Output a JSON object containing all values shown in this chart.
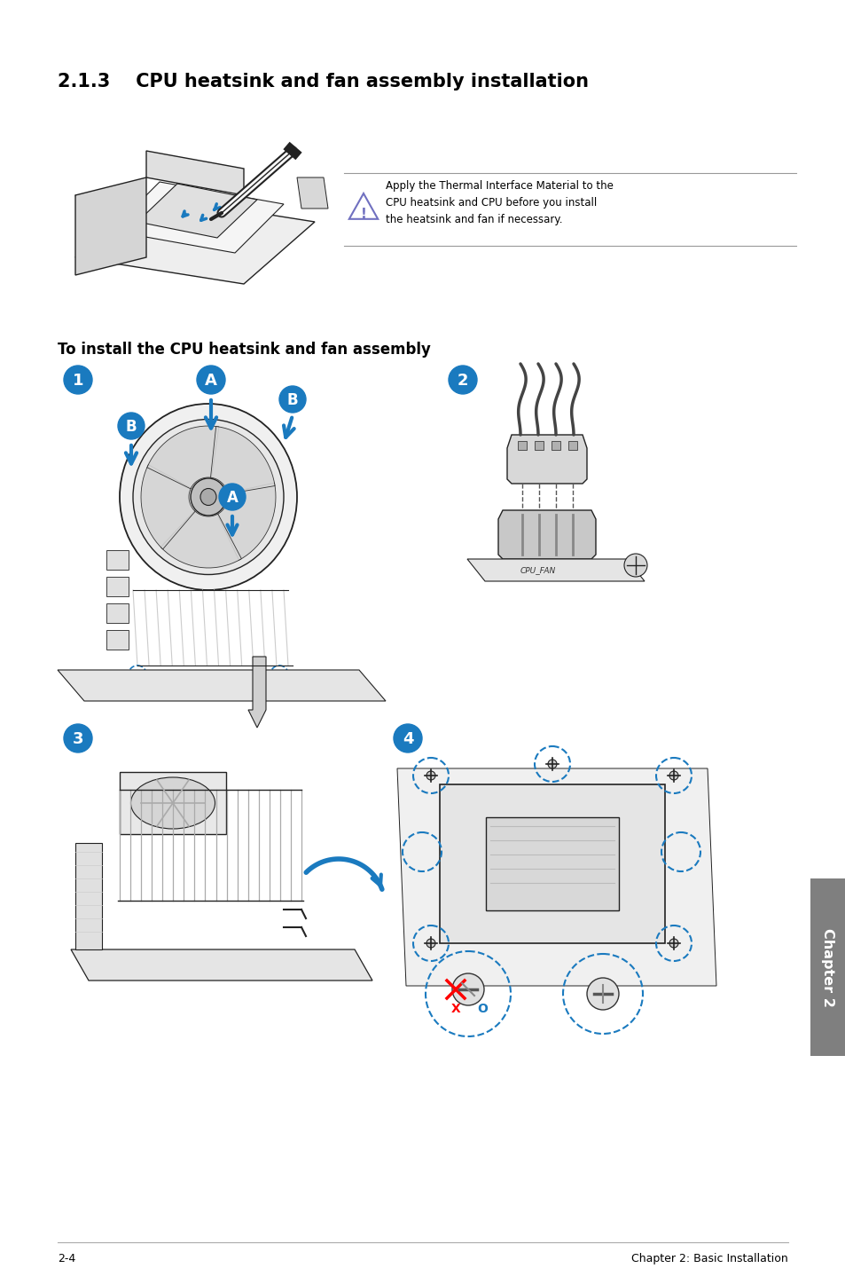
{
  "title_number": "2.1.3",
  "title_text": "CPU heatsink and fan assembly installation",
  "warning_text": "Apply the Thermal Interface Material to the\nCPU heatsink and CPU before you install\nthe heatsink and fan if necessary.",
  "install_heading": "To install the CPU heatsink and fan assembly",
  "footer_left": "2-4",
  "footer_right": "Chapter 2: Basic Installation",
  "chapter_tab": "Chapter 2",
  "bg_color": "#ffffff",
  "text_color": "#000000",
  "blue_color": "#1a7abf",
  "tab_bg": "#7f7f7f",
  "warn_line_color": "#cccccc",
  "warn_icon_color": "#7070c0"
}
